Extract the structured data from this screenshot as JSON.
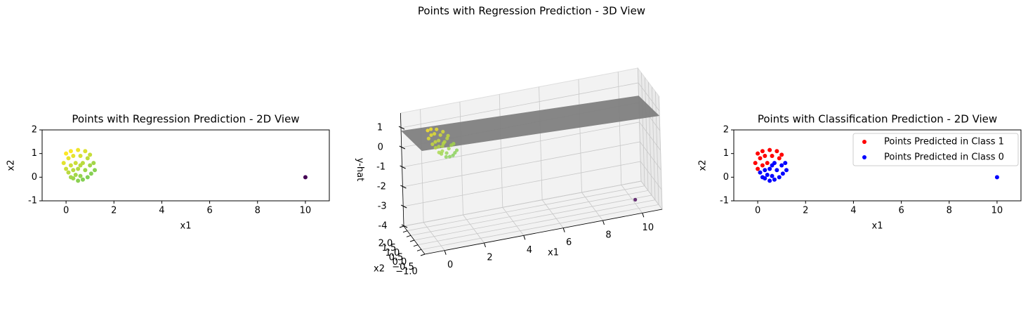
{
  "chart_data": [
    {
      "type": "scatter",
      "title": "Points with Regression Prediction - 2D View",
      "xlabel": "x1",
      "ylabel": "x2",
      "x": [
        0.0,
        0.2,
        0.5,
        0.8,
        1.0,
        -0.1,
        0.1,
        0.3,
        0.6,
        0.9,
        1.15,
        0.0,
        0.2,
        0.4,
        0.7,
        1.0,
        1.2,
        0.1,
        0.3,
        0.5,
        0.8,
        1.05,
        0.2,
        0.4,
        0.6,
        0.9,
        0.5,
        0.7,
        0.3,
        0.6,
        10
      ],
      "y": [
        1.0,
        1.1,
        1.15,
        1.1,
        0.95,
        0.6,
        0.8,
        0.9,
        0.9,
        0.8,
        0.6,
        0.35,
        0.5,
        0.6,
        0.6,
        0.5,
        0.3,
        0.2,
        0.3,
        0.35,
        0.3,
        0.15,
        0.0,
        0.1,
        0.05,
        0.0,
        -0.15,
        -0.1,
        -0.05,
        0.5,
        0
      ],
      "c": [
        1.15,
        1.13,
        1.04,
        0.89,
        0.72,
        0.95,
        0.99,
        0.97,
        0.85,
        0.67,
        0.45,
        0.76,
        0.77,
        0.75,
        0.63,
        0.45,
        0.25,
        0.63,
        0.61,
        0.56,
        0.41,
        0.22,
        0.47,
        0.45,
        0.34,
        0.19,
        0.26,
        0.21,
        0.4,
        0.61,
        -3.8
      ],
      "colormap": "viridis",
      "xlim": [
        -1,
        11
      ],
      "ylim": [
        -1,
        2
      ],
      "xticks": [
        0,
        2,
        4,
        6,
        8,
        10
      ],
      "yticks": [
        -1,
        0,
        1,
        2
      ]
    },
    {
      "type": "scatter3d",
      "title": "Points with Regression Prediction - 3D View",
      "xlabel": "x1",
      "ylabel": "x2",
      "zlabel": "y-hat",
      "x": [
        0.0,
        0.2,
        0.5,
        0.8,
        1.0,
        -0.1,
        0.1,
        0.3,
        0.6,
        0.9,
        1.15,
        0.0,
        0.2,
        0.4,
        0.7,
        1.0,
        1.2,
        0.1,
        0.3,
        0.5,
        0.8,
        1.05,
        0.2,
        0.4,
        0.6,
        0.9,
        0.5,
        0.7,
        0.3,
        0.6,
        10
      ],
      "y": [
        1.0,
        1.1,
        1.15,
        1.1,
        0.95,
        0.6,
        0.8,
        0.9,
        0.9,
        0.8,
        0.6,
        0.35,
        0.5,
        0.6,
        0.6,
        0.5,
        0.3,
        0.2,
        0.3,
        0.35,
        0.3,
        0.15,
        0.0,
        0.1,
        0.05,
        0.0,
        -0.15,
        -0.1,
        -0.05,
        0.5,
        0
      ],
      "z": [
        1.15,
        1.13,
        1.04,
        0.89,
        0.72,
        0.95,
        0.99,
        0.97,
        0.85,
        0.67,
        0.45,
        0.76,
        0.77,
        0.75,
        0.63,
        0.45,
        0.25,
        0.63,
        0.61,
        0.56,
        0.41,
        0.22,
        0.47,
        0.45,
        0.34,
        0.19,
        0.26,
        0.21,
        0.4,
        0.61,
        -3.8
      ],
      "colormap": "viridis",
      "surface": {
        "x": [
          -1,
          11
        ],
        "y": [
          -1,
          2
        ],
        "z": [
          [
            1.25,
            0.85
          ],
          [
            0.75,
            0.35
          ]
        ],
        "color": "#808080"
      },
      "xlim": [
        -1,
        11
      ],
      "ylim": [
        -1,
        2
      ],
      "zlim": [
        -4,
        1.75
      ],
      "xticks": [
        0,
        2,
        4,
        6,
        8,
        10
      ],
      "yticks": [
        {
          "value": -1,
          "label": "−1.0"
        },
        {
          "value": -0.5,
          "label": "−0.5"
        },
        {
          "value": 0,
          "label": "0.0"
        },
        {
          "value": 0.5,
          "label": "0.5"
        },
        {
          "value": 1,
          "label": "1.0"
        },
        {
          "value": 1.5,
          "label": "1.5"
        },
        {
          "value": 2,
          "label": "2.0"
        }
      ],
      "zticks": [
        -4,
        -3,
        -2,
        -1,
        0,
        1
      ],
      "grid": true
    },
    {
      "type": "scatter",
      "title": "Points with Classification Prediction - 2D View",
      "xlabel": "x1",
      "ylabel": "x2",
      "series": [
        {
          "name": "Points Predicted in Class 1",
          "color": "#ff0000",
          "x": [
            0.0,
            0.2,
            0.5,
            0.8,
            1.0,
            -0.1,
            0.1,
            0.3,
            0.6,
            0.9,
            0.0,
            0.2,
            0.4
          ],
          "y": [
            1.0,
            1.1,
            1.15,
            1.1,
            0.95,
            0.6,
            0.8,
            0.9,
            0.9,
            0.8,
            0.35,
            0.5,
            0.6
          ]
        },
        {
          "name": "Points Predicted in Class 0",
          "color": "#0000ff",
          "x": [
            1.15,
            0.7,
            1.0,
            1.2,
            0.1,
            0.3,
            0.5,
            0.8,
            1.05,
            0.2,
            0.4,
            0.6,
            0.9,
            0.5,
            0.7,
            0.3,
            0.6,
            10
          ],
          "y": [
            0.6,
            0.6,
            0.5,
            0.3,
            0.2,
            0.3,
            0.35,
            0.3,
            0.15,
            0.0,
            0.1,
            0.05,
            0.0,
            -0.15,
            -0.1,
            -0.05,
            0.5,
            0
          ]
        }
      ],
      "legend": "upper right",
      "xlim": [
        -1,
        11
      ],
      "ylim": [
        -1,
        2
      ],
      "xticks": [
        0,
        2,
        4,
        6,
        8,
        10
      ],
      "yticks": [
        -1,
        0,
        1,
        2
      ]
    }
  ]
}
